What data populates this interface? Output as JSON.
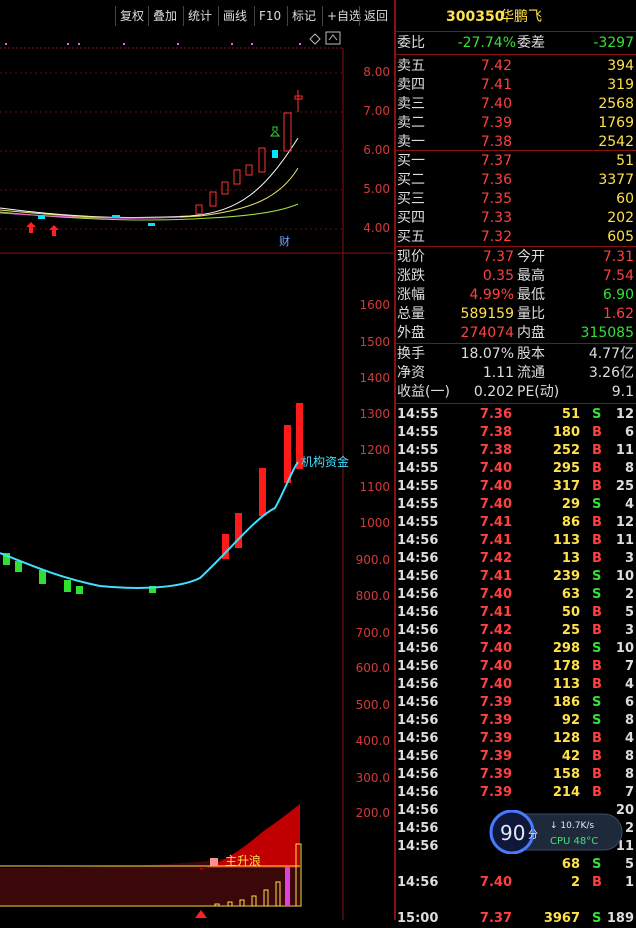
{
  "toolbar": {
    "items": [
      "复权",
      "叠加",
      "统计",
      "画线",
      "F10",
      "标记",
      "+自选",
      "返回"
    ]
  },
  "stock": {
    "code": "300350",
    "name": "华鹏飞"
  },
  "order_book": {
    "weibi_label": "委比",
    "weibi_value": "-27.74%",
    "weicha_label": "委差",
    "weicha_value": "-3297",
    "asks": [
      {
        "label": "卖五",
        "price": "7.42",
        "vol": "394"
      },
      {
        "label": "卖四",
        "price": "7.41",
        "vol": "319"
      },
      {
        "label": "卖三",
        "price": "7.40",
        "vol": "2568"
      },
      {
        "label": "卖二",
        "price": "7.39",
        "vol": "1769"
      },
      {
        "label": "卖一",
        "price": "7.38",
        "vol": "2542"
      }
    ],
    "bids": [
      {
        "label": "买一",
        "price": "7.37",
        "vol": "51"
      },
      {
        "label": "买二",
        "price": "7.36",
        "vol": "3377"
      },
      {
        "label": "买三",
        "price": "7.35",
        "vol": "60"
      },
      {
        "label": "买四",
        "price": "7.33",
        "vol": "202"
      },
      {
        "label": "买五",
        "price": "7.32",
        "vol": "605"
      }
    ]
  },
  "quote": {
    "rows": [
      {
        "l1": "现价",
        "v1": "7.37",
        "c1": "red",
        "l2": "今开",
        "v2": "7.31",
        "c2": "red"
      },
      {
        "l1": "涨跌",
        "v1": "0.35",
        "c1": "red",
        "l2": "最高",
        "v2": "7.54",
        "c2": "red"
      },
      {
        "l1": "涨幅",
        "v1": "4.99%",
        "c1": "red",
        "l2": "最低",
        "v2": "6.90",
        "c2": "green"
      },
      {
        "l1": "总量",
        "v1": "589159",
        "c1": "yel",
        "l2": "量比",
        "v2": "1.62",
        "c2": "red"
      },
      {
        "l1": "外盘",
        "v1": "274074",
        "c1": "red",
        "l2": "内盘",
        "v2": "315085",
        "c2": "green"
      }
    ],
    "fund_rows": [
      {
        "l1": "换手",
        "v1": "18.07%",
        "l2": "股本",
        "v2": "4.77亿"
      },
      {
        "l1": "净资",
        "v1": "1.11",
        "l2": "流通",
        "v2": "3.26亿"
      },
      {
        "l1": "收益(一)",
        "v1": "0.202",
        "l2": "PE(动)",
        "v2": "9.1"
      }
    ]
  },
  "trades": [
    {
      "t": "14:55",
      "p": "7.36",
      "v": "51",
      "s": "S",
      "n": "12"
    },
    {
      "t": "14:55",
      "p": "7.38",
      "v": "180",
      "s": "B",
      "n": "6"
    },
    {
      "t": "14:55",
      "p": "7.38",
      "v": "252",
      "s": "B",
      "n": "11"
    },
    {
      "t": "14:55",
      "p": "7.40",
      "v": "295",
      "s": "B",
      "n": "8"
    },
    {
      "t": "14:55",
      "p": "7.40",
      "v": "317",
      "s": "B",
      "n": "25"
    },
    {
      "t": "14:55",
      "p": "7.40",
      "v": "29",
      "s": "S",
      "n": "4"
    },
    {
      "t": "14:55",
      "p": "7.41",
      "v": "86",
      "s": "B",
      "n": "12"
    },
    {
      "t": "14:56",
      "p": "7.41",
      "v": "113",
      "s": "B",
      "n": "11"
    },
    {
      "t": "14:56",
      "p": "7.42",
      "v": "13",
      "s": "B",
      "n": "3"
    },
    {
      "t": "14:56",
      "p": "7.41",
      "v": "239",
      "s": "S",
      "n": "10"
    },
    {
      "t": "14:56",
      "p": "7.40",
      "v": "63",
      "s": "S",
      "n": "2"
    },
    {
      "t": "14:56",
      "p": "7.41",
      "v": "50",
      "s": "B",
      "n": "5"
    },
    {
      "t": "14:56",
      "p": "7.42",
      "v": "25",
      "s": "B",
      "n": "3"
    },
    {
      "t": "14:56",
      "p": "7.40",
      "v": "298",
      "s": "S",
      "n": "10"
    },
    {
      "t": "14:56",
      "p": "7.40",
      "v": "178",
      "s": "B",
      "n": "7"
    },
    {
      "t": "14:56",
      "p": "7.40",
      "v": "113",
      "s": "B",
      "n": "4"
    },
    {
      "t": "14:56",
      "p": "7.39",
      "v": "186",
      "s": "S",
      "n": "6"
    },
    {
      "t": "14:56",
      "p": "7.39",
      "v": "92",
      "s": "S",
      "n": "8"
    },
    {
      "t": "14:56",
      "p": "7.39",
      "v": "128",
      "s": "B",
      "n": "4"
    },
    {
      "t": "14:56",
      "p": "7.39",
      "v": "42",
      "s": "B",
      "n": "8"
    },
    {
      "t": "14:56",
      "p": "7.39",
      "v": "158",
      "s": "B",
      "n": "8"
    },
    {
      "t": "14:56",
      "p": "7.39",
      "v": "214",
      "s": "B",
      "n": "7"
    },
    {
      "t": "14:56",
      "p": "",
      "v": "",
      "s": "",
      "n": "20"
    },
    {
      "t": "14:56",
      "p": "",
      "v": "",
      "s": "",
      "n": "2"
    },
    {
      "t": "14:56",
      "p": "",
      "v": "",
      "s": "",
      "n": "11"
    },
    {
      "t": "",
      "p": "",
      "v": "68",
      "s": "S",
      "n": "5"
    },
    {
      "t": "14:56",
      "p": "7.40",
      "v": "2",
      "s": "B",
      "n": "1"
    }
  ],
  "trades_last": {
    "t": "15:00",
    "p": "7.37",
    "v": "3967",
    "s": "S",
    "n": "189"
  },
  "kline_axis": [
    "8.00",
    "7.00",
    "6.00",
    "5.00",
    "4.00"
  ],
  "fund_axis": [
    "1600",
    "1500",
    "1400",
    "1300",
    "1200",
    "1100",
    "1000",
    "900.0",
    "800.0",
    "700.0",
    "600.0",
    "500.0",
    "400.0",
    "300.0",
    "200.0"
  ],
  "labels": {
    "fund_line": "机构资金",
    "bottom_tag": "主升浪",
    "cai_badge": "财"
  },
  "cpu_widget": {
    "score": "90",
    "score_unit": "分",
    "speed": "↓ 10.7K/s",
    "cpu": "CPU 48°C"
  },
  "colors": {
    "up": "#ff3030",
    "down": "#30e030",
    "border": "#8a1010",
    "label": "#d23a3a"
  }
}
